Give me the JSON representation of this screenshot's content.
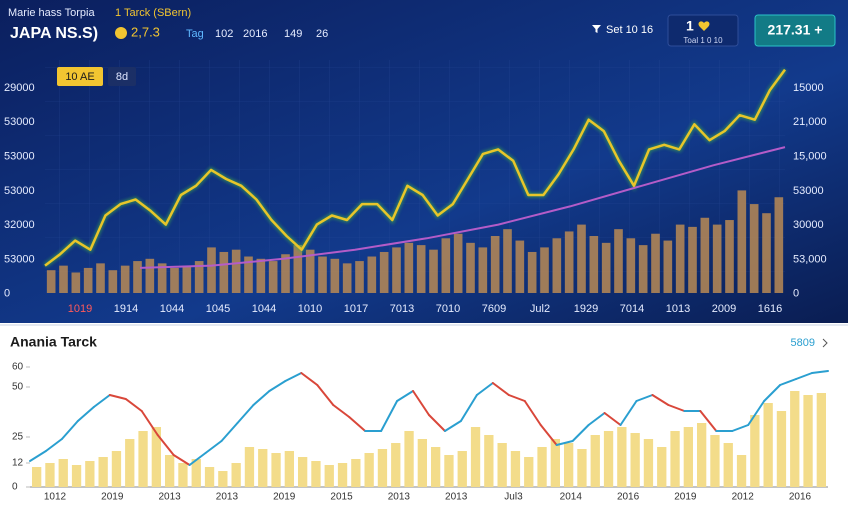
{
  "header": {
    "app_name": "Marie hass Torpia",
    "badge": "1 Tarck (SBern)",
    "symbol": "JAPA NS.S)",
    "price": "2,7.3",
    "tabs": [
      "Tag",
      "102",
      "2016",
      "149",
      "26"
    ],
    "filter": "Set 10 16",
    "counter": "1",
    "counter_sub": "Toal 1 0 10",
    "quote": "217.31 +"
  },
  "chart_data": [
    {
      "type": "line",
      "legend": [
        "10 AE",
        "8d"
      ],
      "left_axis_labels": [
        "29000",
        "53000",
        "53000",
        "53000",
        "32000",
        "53000",
        "0"
      ],
      "right_axis_labels": [
        "15000",
        "21,000",
        "15,000",
        "53000",
        "30000",
        "53,000",
        "0"
      ],
      "x_axis_labels": [
        "1019",
        "1914",
        "1044",
        "1045",
        "1044",
        "1010",
        "1017",
        "7013",
        "7010",
        "7609",
        "Jul2",
        "1929",
        "7014",
        "1013",
        "2009",
        "1616"
      ],
      "ylim": [
        0,
        100
      ],
      "series": [
        {
          "type": "bar",
          "color": "#b98a55",
          "values": [
            10,
            12,
            9,
            11,
            13,
            10,
            12,
            14,
            15,
            13,
            11,
            12,
            14,
            20,
            18,
            19,
            16,
            15,
            14,
            17,
            21,
            19,
            16,
            15,
            13,
            14,
            16,
            18,
            20,
            22,
            21,
            19,
            24,
            26,
            22,
            20,
            25,
            28,
            23,
            18,
            20,
            24,
            27,
            30,
            25,
            22,
            28,
            24,
            21,
            26,
            23,
            30,
            29,
            33,
            30,
            32,
            45,
            39,
            35,
            42
          ]
        },
        {
          "type": "line",
          "color": "#e8c52a",
          "glow": "#3fae4a",
          "values": [
            12,
            17,
            23,
            19,
            34,
            39,
            41,
            36,
            30,
            43,
            47,
            54,
            50,
            47,
            41,
            32,
            25,
            19,
            30,
            34,
            32,
            39,
            39,
            32,
            47,
            43,
            34,
            39,
            50,
            61,
            63,
            58,
            43,
            43,
            52,
            63,
            76,
            71,
            58,
            47,
            63,
            65,
            63,
            74,
            67,
            71,
            78,
            76,
            89,
            98
          ]
        },
        {
          "type": "line",
          "color": "#b45cc8",
          "values": [
            11,
            12,
            15,
            19,
            24,
            30,
            38,
            47,
            56,
            64
          ]
        }
      ]
    },
    {
      "type": "line",
      "title": "Anania Tarck",
      "link": "5809",
      "ylim": [
        0,
        60
      ],
      "yticks": [
        60,
        50,
        25,
        12,
        0
      ],
      "x_axis_labels": [
        "1012",
        "2019",
        "2013",
        "2013",
        "2019",
        "2015",
        "2013",
        "2013",
        "Jul3",
        "2014",
        "2016",
        "2019",
        "2012",
        "2016"
      ],
      "series": [
        {
          "type": "bar",
          "color": "#f3dc8a",
          "values": [
            10,
            12,
            14,
            11,
            13,
            15,
            18,
            24,
            28,
            30,
            16,
            12,
            14,
            10,
            8,
            12,
            20,
            19,
            17,
            18,
            15,
            13,
            11,
            12,
            14,
            17,
            19,
            22,
            28,
            24,
            20,
            16,
            18,
            30,
            26,
            22,
            18,
            15,
            20,
            24,
            22,
            19,
            26,
            28,
            30,
            27,
            24,
            20,
            28,
            30,
            32,
            26,
            22,
            16,
            36,
            42,
            38,
            48,
            46,
            47
          ]
        },
        {
          "type": "line",
          "color": "#2a9fd0",
          "decline_color": "#d9473a",
          "values": [
            13,
            18,
            24,
            33,
            40,
            46,
            44,
            38,
            26,
            16,
            11,
            17,
            23,
            32,
            41,
            48,
            53,
            57,
            51,
            41,
            35,
            28,
            28,
            43,
            48,
            36,
            28,
            33,
            46,
            52,
            46,
            43,
            31,
            21,
            23,
            31,
            37,
            31,
            43,
            46,
            41,
            38,
            38,
            28,
            28,
            31,
            43,
            51,
            54,
            57,
            58
          ]
        }
      ]
    }
  ]
}
